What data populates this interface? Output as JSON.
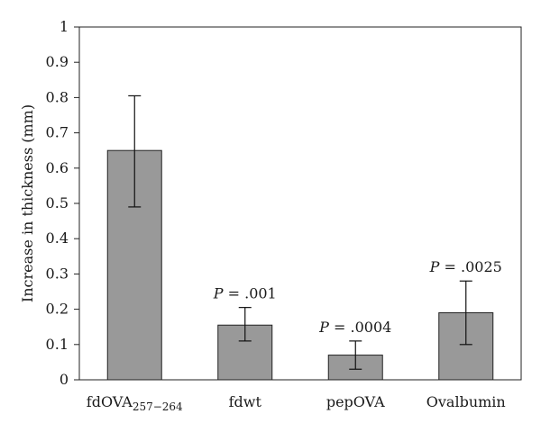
{
  "chart_data": {
    "type": "bar",
    "title": "",
    "xlabel": "",
    "ylabel": "Increase in thickness (mm)",
    "ylim": [
      0,
      1
    ],
    "yticks": [
      "0",
      "0.1",
      "0.2",
      "0.3",
      "0.4",
      "0.5",
      "0.6",
      "0.7",
      "0.8",
      "0.9",
      "1"
    ],
    "categories": [
      {
        "main": "fdOVA",
        "sub": "257−264"
      },
      {
        "main": "fdwt",
        "sub": ""
      },
      {
        "main": "pepOVA",
        "sub": ""
      },
      {
        "main": "Ovalbumin",
        "sub": ""
      }
    ],
    "values": [
      0.65,
      0.155,
      0.07,
      0.19
    ],
    "error_low": [
      0.49,
      0.11,
      0.03,
      0.1
    ],
    "error_high": [
      0.805,
      0.205,
      0.11,
      0.28
    ],
    "annotations": [
      {
        "category_index": 1,
        "p_label": "P",
        "text": " = .001"
      },
      {
        "category_index": 2,
        "p_label": "P",
        "text": " = .0004"
      },
      {
        "category_index": 3,
        "p_label": "P",
        "text": " = .0025"
      }
    ],
    "grid": false,
    "bar_color": "#999999",
    "bar_edge_color": "#222222"
  }
}
